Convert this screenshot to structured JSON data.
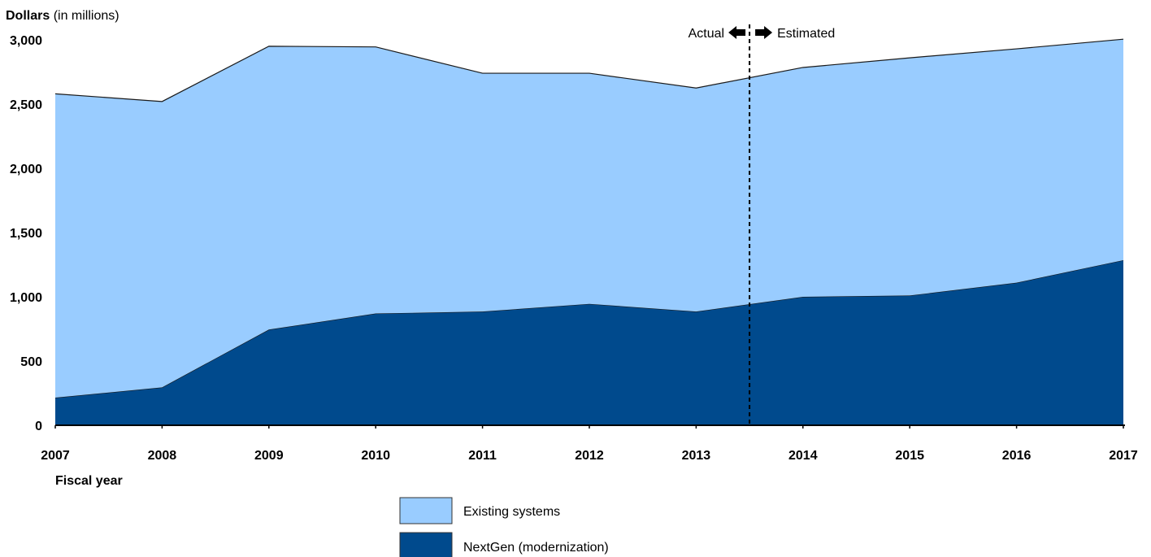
{
  "chart_data": {
    "type": "area",
    "stacked": true,
    "ylabel_bold": "Dollars",
    "ylabel_rest": " (in millions)",
    "xlabel": "Fiscal year",
    "x": [
      "2007",
      "2008",
      "2009",
      "2010",
      "2011",
      "2012",
      "2013",
      "2014",
      "2015",
      "2016",
      "2017"
    ],
    "ylim": [
      0,
      3000
    ],
    "yticks": [
      0,
      500,
      1000,
      1500,
      2000,
      2500,
      3000
    ],
    "ytick_labels": [
      "0",
      "500",
      "1,000",
      "1,500",
      "2,000",
      "2,500",
      "3,000"
    ],
    "grid": false,
    "legend_position": "bottom-center",
    "series": [
      {
        "name": "NextGen (modernization)",
        "color": "#004a8d",
        "values": [
          215,
          295,
          745,
          870,
          885,
          945,
          885,
          1000,
          1010,
          1110,
          1285
        ]
      },
      {
        "name": "Existing systems",
        "color": "#99ccff",
        "values": [
          2365,
          2225,
          2205,
          2075,
          1855,
          1795,
          1740,
          1785,
          1850,
          1820,
          1720
        ]
      }
    ],
    "annotation": {
      "actual_label": "Actual",
      "estimated_label": "Estimated",
      "divider_at_x": 6.5
    }
  }
}
